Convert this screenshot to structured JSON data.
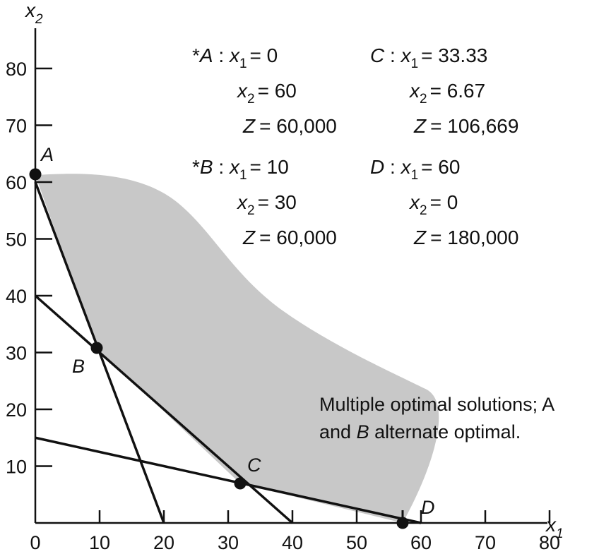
{
  "chart_data": {
    "type": "diagram",
    "xlabel": {
      "var": "x",
      "sub": "1"
    },
    "ylabel": {
      "var": "x",
      "sub": "2"
    },
    "xlim": [
      0,
      80
    ],
    "ylim": [
      0,
      80
    ],
    "xticks": [
      "0",
      "10",
      "20",
      "30",
      "40",
      "50",
      "60",
      "70",
      "80"
    ],
    "yticks": [
      "10",
      "20",
      "30",
      "40",
      "50",
      "60",
      "70",
      "80"
    ],
    "constraint_lines": [
      {
        "from": [
          0,
          60
        ],
        "to": [
          20,
          0
        ]
      },
      {
        "from": [
          0,
          40
        ],
        "to": [
          40,
          0
        ]
      },
      {
        "from": [
          0,
          15
        ],
        "to": [
          60,
          0
        ]
      }
    ],
    "points": [
      {
        "label": "A",
        "x": 0,
        "y": 60
      },
      {
        "label": "B",
        "x": 10,
        "y": 30
      },
      {
        "label": "C",
        "x": 33.33,
        "y": 6.67
      },
      {
        "label": "D",
        "x": 60,
        "y": 0
      }
    ],
    "feasible_region_color": "#c8c8c8"
  },
  "info": {
    "A": {
      "star": "*",
      "name": "A",
      "x1": "= 0",
      "x2": "= 60",
      "z": "= 60,000"
    },
    "B": {
      "star": "*",
      "name": "B",
      "x1": "= 10",
      "x2": "= 30",
      "z": "= 60,000"
    },
    "C": {
      "name": "C",
      "x1": "= 33.33",
      "x2": "= 6.67",
      "z": "= 106,669"
    },
    "D": {
      "name": "D",
      "x1": "= 60",
      "x2": "= 0",
      "z": "= 180,000"
    },
    "sep": " : ",
    "x": "x",
    "sub1": "1",
    "sub2": "2",
    "zvar": "Z"
  },
  "note": {
    "line1": "Multiple optimal solutions; A",
    "line2_pre": "and ",
    "line2_it": "B",
    "line2_post": " alternate optimal."
  }
}
